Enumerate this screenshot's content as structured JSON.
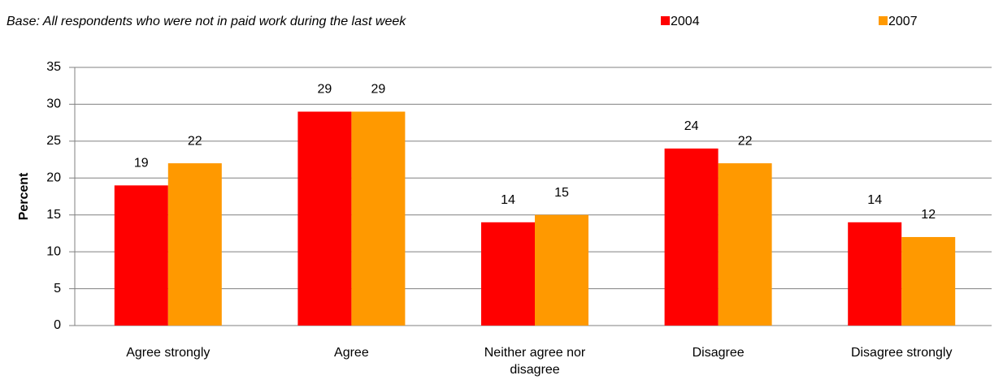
{
  "chart_data": {
    "type": "bar",
    "subtitle": "Base: All respondents who were not in paid work during the last week",
    "y_label": "Percent",
    "categories": [
      "Agree strongly",
      "Agree",
      "Neither agree nor disagree",
      "Disagree",
      "Disagree strongly"
    ],
    "series": [
      {
        "name": "2004",
        "color": "#ff0000",
        "values": [
          19,
          29,
          14,
          24,
          14
        ]
      },
      {
        "name": "2007",
        "color": "#ff9900",
        "values": [
          22,
          29,
          15,
          22,
          12
        ]
      }
    ],
    "ylim": [
      0,
      35
    ],
    "yticks": [
      0,
      5,
      10,
      15,
      20,
      25,
      30,
      35
    ],
    "grid": true,
    "legend": "top"
  }
}
